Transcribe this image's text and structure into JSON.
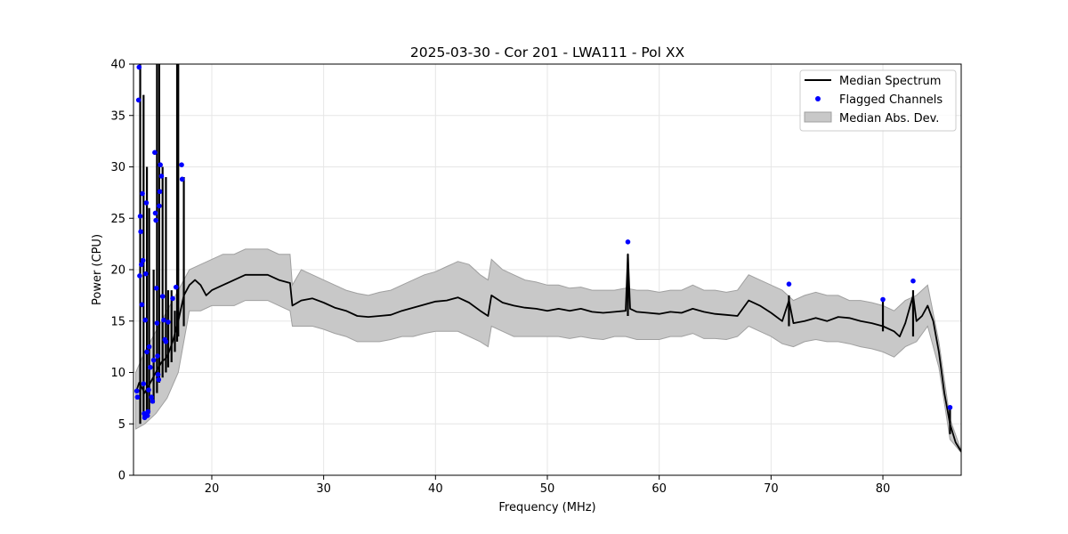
{
  "chart_data": {
    "type": "line",
    "title": "2025-03-30 - Cor 201 - LWA111 - Pol XX",
    "xlabel": "Frequency (MHz)",
    "ylabel": "Power (CPU)",
    "xlim": [
      13,
      87
    ],
    "ylim": [
      0,
      40
    ],
    "xticks": [
      20,
      30,
      40,
      50,
      60,
      70,
      80
    ],
    "yticks": [
      0,
      5,
      10,
      15,
      20,
      25,
      30,
      35,
      40
    ],
    "grid": true,
    "legend_position": "top-right",
    "colors": {
      "median": "#000000",
      "flagged": "#0000ff",
      "band": "#c8c8c8",
      "band_edge": "#a0a0a0",
      "grid": "#e6e6e6"
    },
    "legend": [
      {
        "label": "Median Spectrum",
        "kind": "line"
      },
      {
        "label": "Flagged Channels",
        "kind": "marker"
      },
      {
        "label": "Median Abs. Dev.",
        "kind": "patch"
      }
    ],
    "series": [
      {
        "name": "Median Spectrum",
        "x": [
          13.2,
          13.5,
          14.0,
          14.5,
          15.0,
          15.5,
          16.0,
          16.5,
          17.0,
          17.5,
          18.0,
          18.5,
          19.0,
          19.5,
          20.0,
          21.0,
          22.0,
          23.0,
          24.0,
          25.0,
          26.0,
          27.0,
          27.2,
          28.0,
          29.0,
          30.0,
          31.0,
          32.0,
          33.0,
          34.0,
          35.0,
          36.0,
          37.0,
          38.0,
          39.0,
          40.0,
          41.0,
          42.0,
          43.0,
          44.0,
          44.7,
          45.0,
          46.0,
          47.0,
          48.0,
          49.0,
          50.0,
          51.0,
          52.0,
          53.0,
          54.0,
          55.0,
          56.0,
          57.0,
          57.2,
          57.4,
          58.0,
          59.0,
          60.0,
          61.0,
          62.0,
          63.0,
          64.0,
          65.0,
          66.0,
          67.0,
          68.0,
          69.0,
          70.0,
          71.0,
          71.6,
          72.0,
          73.0,
          74.0,
          75.0,
          76.0,
          77.0,
          78.0,
          79.0,
          80.0,
          81.0,
          81.5,
          82.0,
          82.7,
          83.0,
          83.5,
          84.0,
          84.5,
          85.0,
          85.5,
          86.0,
          86.5,
          87.0
        ],
        "y": [
          8.0,
          9.0,
          8.0,
          9.0,
          10.0,
          11.0,
          11.5,
          13.0,
          15.0,
          17.5,
          18.5,
          19.0,
          18.5,
          17.5,
          18.0,
          18.5,
          19.0,
          19.5,
          19.5,
          19.5,
          19.0,
          18.7,
          16.5,
          17.0,
          17.2,
          16.8,
          16.3,
          16.0,
          15.5,
          15.4,
          15.5,
          15.6,
          16.0,
          16.3,
          16.6,
          16.9,
          17.0,
          17.3,
          16.8,
          16.0,
          15.5,
          17.5,
          16.8,
          16.5,
          16.3,
          16.2,
          16.0,
          16.2,
          16.0,
          16.2,
          15.9,
          15.8,
          15.9,
          16.0,
          21.5,
          16.2,
          15.9,
          15.8,
          15.7,
          15.9,
          15.8,
          16.2,
          15.9,
          15.7,
          15.6,
          15.5,
          17.0,
          16.5,
          15.8,
          15.0,
          17.0,
          14.8,
          15.0,
          15.3,
          15.0,
          15.4,
          15.3,
          15.0,
          14.8,
          14.5,
          14.0,
          13.5,
          14.8,
          17.5,
          15.0,
          15.5,
          16.5,
          15.0,
          12.0,
          8.0,
          5.0,
          3.2,
          2.3
        ]
      }
    ],
    "band": {
      "name": "Median Abs. Dev.",
      "x": [
        13.2,
        14.0,
        15.0,
        16.0,
        17.0,
        18.0,
        19.0,
        20.0,
        21.0,
        22.0,
        23.0,
        24.0,
        25.0,
        26.0,
        27.0,
        27.2,
        28.0,
        29.0,
        30.0,
        31.0,
        32.0,
        33.0,
        34.0,
        35.0,
        36.0,
        37.0,
        38.0,
        39.0,
        40.0,
        41.0,
        42.0,
        43.0,
        44.0,
        44.7,
        45.0,
        46.0,
        47.0,
        48.0,
        49.0,
        50.0,
        51.0,
        52.0,
        53.0,
        54.0,
        55.0,
        56.0,
        57.0,
        58.0,
        59.0,
        60.0,
        61.0,
        62.0,
        63.0,
        64.0,
        65.0,
        66.0,
        67.0,
        68.0,
        69.0,
        70.0,
        71.0,
        72.0,
        73.0,
        74.0,
        75.0,
        76.0,
        77.0,
        78.0,
        79.0,
        80.0,
        81.0,
        82.0,
        83.0,
        84.0,
        85.0,
        86.0,
        87.0
      ],
      "upper": [
        10.0,
        12.0,
        14.0,
        16.0,
        18.0,
        20.0,
        20.5,
        21.0,
        21.5,
        21.5,
        22.0,
        22.0,
        22.0,
        21.5,
        21.5,
        18.5,
        20.0,
        19.5,
        19.0,
        18.5,
        18.0,
        17.7,
        17.5,
        17.8,
        18.0,
        18.5,
        19.0,
        19.5,
        19.8,
        20.3,
        20.8,
        20.5,
        19.5,
        19.0,
        21.0,
        20.0,
        19.5,
        19.0,
        18.8,
        18.5,
        18.5,
        18.2,
        18.3,
        18.0,
        18.0,
        18.0,
        18.2,
        18.0,
        18.0,
        17.8,
        18.0,
        18.0,
        18.5,
        18.0,
        18.0,
        17.8,
        18.0,
        19.5,
        19.0,
        18.5,
        18.0,
        17.0,
        17.5,
        17.8,
        17.5,
        17.5,
        17.0,
        17.0,
        16.8,
        16.5,
        16.0,
        17.0,
        17.5,
        18.5,
        13.0,
        5.5,
        2.4
      ],
      "lower": [
        4.5,
        5.0,
        6.0,
        7.5,
        10.0,
        16.0,
        16.0,
        16.5,
        16.5,
        16.5,
        17.0,
        17.0,
        17.0,
        16.5,
        16.0,
        14.5,
        14.5,
        14.5,
        14.2,
        13.8,
        13.5,
        13.0,
        13.0,
        13.0,
        13.2,
        13.5,
        13.5,
        13.8,
        14.0,
        14.0,
        14.0,
        13.5,
        13.0,
        12.5,
        14.5,
        14.0,
        13.5,
        13.5,
        13.5,
        13.5,
        13.5,
        13.3,
        13.5,
        13.3,
        13.2,
        13.5,
        13.5,
        13.2,
        13.2,
        13.2,
        13.5,
        13.5,
        13.8,
        13.3,
        13.3,
        13.2,
        13.5,
        14.5,
        14.0,
        13.5,
        12.8,
        12.5,
        13.0,
        13.2,
        13.0,
        13.0,
        12.8,
        12.5,
        12.3,
        12.0,
        11.5,
        12.5,
        13.0,
        14.5,
        10.5,
        3.5,
        2.2
      ]
    },
    "spikes": [
      {
        "x": 13.6,
        "y_top": 40.0,
        "y_bottom": 5.0
      },
      {
        "x": 13.9,
        "y_top": 37.0,
        "y_bottom": 5.5
      },
      {
        "x": 14.2,
        "y_top": 30.0,
        "y_bottom": 6.0
      },
      {
        "x": 14.4,
        "y_top": 26.0,
        "y_bottom": 6.0
      },
      {
        "x": 14.8,
        "y_top": 20.0,
        "y_bottom": 7.0
      },
      {
        "x": 15.1,
        "y_top": 40.0,
        "y_bottom": 8.0
      },
      {
        "x": 15.3,
        "y_top": 40.0,
        "y_bottom": 9.0
      },
      {
        "x": 15.6,
        "y_top": 30.0,
        "y_bottom": 9.5
      },
      {
        "x": 15.9,
        "y_top": 29.0,
        "y_bottom": 10.0
      },
      {
        "x": 16.1,
        "y_top": 18.0,
        "y_bottom": 10.5
      },
      {
        "x": 16.4,
        "y_top": 18.0,
        "y_bottom": 11.0
      },
      {
        "x": 16.7,
        "y_top": 16.0,
        "y_bottom": 12.0
      },
      {
        "x": 16.9,
        "y_top": 40.0,
        "y_bottom": 13.0
      },
      {
        "x": 17.0,
        "y_top": 40.0,
        "y_bottom": 13.5
      },
      {
        "x": 17.5,
        "y_top": 29.0,
        "y_bottom": 14.5
      },
      {
        "x": 57.2,
        "y_top": 21.5,
        "y_bottom": 15.5
      },
      {
        "x": 71.6,
        "y_top": 17.5,
        "y_bottom": 14.5
      },
      {
        "x": 80.0,
        "y_top": 17.0,
        "y_bottom": 14.0
      },
      {
        "x": 82.7,
        "y_top": 18.0,
        "y_bottom": 13.5
      },
      {
        "x": 86.0,
        "y_top": 6.5,
        "y_bottom": 4.0
      }
    ],
    "flagged_channels": [
      {
        "x": 13.3,
        "y": 8.2
      },
      {
        "x": 13.35,
        "y": 7.6
      },
      {
        "x": 13.45,
        "y": 36.5
      },
      {
        "x": 13.5,
        "y": 39.7
      },
      {
        "x": 13.55,
        "y": 19.4
      },
      {
        "x": 13.6,
        "y": 25.2
      },
      {
        "x": 13.65,
        "y": 23.7
      },
      {
        "x": 13.7,
        "y": 20.5
      },
      {
        "x": 13.75,
        "y": 16.6
      },
      {
        "x": 13.8,
        "y": 27.4
      },
      {
        "x": 13.85,
        "y": 20.9
      },
      {
        "x": 13.9,
        "y": 8.9
      },
      {
        "x": 13.95,
        "y": 6.0
      },
      {
        "x": 14.0,
        "y": 5.6
      },
      {
        "x": 14.05,
        "y": 15.1
      },
      {
        "x": 14.1,
        "y": 19.6
      },
      {
        "x": 14.15,
        "y": 26.5
      },
      {
        "x": 14.2,
        "y": 12.0
      },
      {
        "x": 14.25,
        "y": 5.8
      },
      {
        "x": 14.3,
        "y": 6.2
      },
      {
        "x": 14.35,
        "y": 8.3
      },
      {
        "x": 14.4,
        "y": 12.5
      },
      {
        "x": 14.5,
        "y": 10.5
      },
      {
        "x": 14.6,
        "y": 7.6
      },
      {
        "x": 14.7,
        "y": 7.2
      },
      {
        "x": 14.8,
        "y": 11.2
      },
      {
        "x": 14.9,
        "y": 31.4
      },
      {
        "x": 14.95,
        "y": 25.5
      },
      {
        "x": 15.0,
        "y": 24.8
      },
      {
        "x": 15.05,
        "y": 18.2
      },
      {
        "x": 15.1,
        "y": 14.8
      },
      {
        "x": 15.15,
        "y": 11.6
      },
      {
        "x": 15.2,
        "y": 9.8
      },
      {
        "x": 15.25,
        "y": 9.3
      },
      {
        "x": 15.3,
        "y": 26.2
      },
      {
        "x": 15.35,
        "y": 27.6
      },
      {
        "x": 15.4,
        "y": 30.2
      },
      {
        "x": 15.5,
        "y": 29.1
      },
      {
        "x": 15.6,
        "y": 17.4
      },
      {
        "x": 15.7,
        "y": 15.1
      },
      {
        "x": 15.8,
        "y": 13.2
      },
      {
        "x": 15.9,
        "y": 13.0
      },
      {
        "x": 16.1,
        "y": 14.9
      },
      {
        "x": 16.5,
        "y": 17.2
      },
      {
        "x": 16.8,
        "y": 18.3
      },
      {
        "x": 17.3,
        "y": 30.2
      },
      {
        "x": 17.35,
        "y": 28.8
      },
      {
        "x": 57.2,
        "y": 22.7
      },
      {
        "x": 71.6,
        "y": 18.6
      },
      {
        "x": 80.0,
        "y": 17.1
      },
      {
        "x": 82.7,
        "y": 18.9
      },
      {
        "x": 86.0,
        "y": 6.6
      }
    ]
  }
}
